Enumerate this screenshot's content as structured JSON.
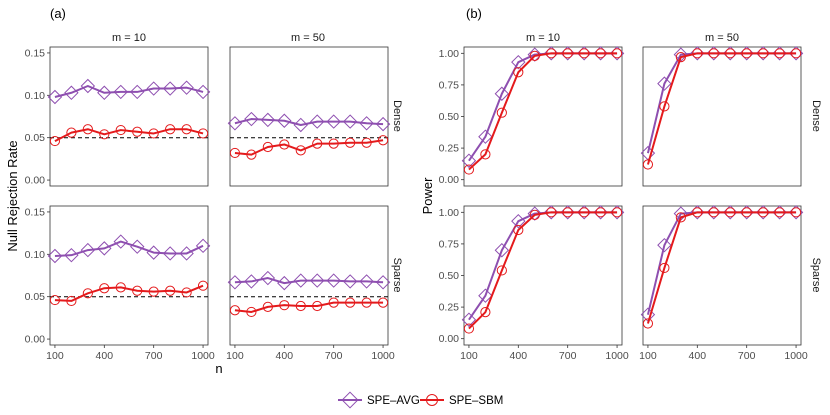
{
  "legend": {
    "avg_label": "SPE–AVG",
    "sbm_label": "SPE–SBM",
    "avg_color": "#8E4FB0",
    "sbm_color": "#E41A1C"
  },
  "chart_data": [
    {
      "type": "line",
      "figure_label": "(a)",
      "ylabel": "Null Rejection Rate",
      "xlabel": "n",
      "ylim": [
        -0.007,
        0.157
      ],
      "yticks": [
        0.0,
        0.05,
        0.1,
        0.15
      ],
      "ytick_labels": [
        "0.00",
        "0.05",
        "0.10",
        "0.15"
      ],
      "xlim": [
        70,
        1030
      ],
      "xticks": [
        100,
        400,
        700,
        1000
      ],
      "xtick_labels": [
        "100",
        "400",
        "700",
        "1000"
      ],
      "col_titles": [
        "m = 10",
        "m = 50"
      ],
      "row_titles": [
        "Dense",
        "Sparse"
      ],
      "reference_line": 0.05,
      "x": [
        100,
        200,
        300,
        400,
        500,
        600,
        700,
        800,
        900,
        1000
      ],
      "panels": [
        {
          "row": 0,
          "col": 0,
          "series": [
            {
              "name": "SPE–AVG",
              "values": [
                0.098,
                0.103,
                0.111,
                0.103,
                0.104,
                0.104,
                0.108,
                0.108,
                0.109,
                0.104
              ]
            },
            {
              "name": "SPE–SBM",
              "values": [
                0.046,
                0.056,
                0.06,
                0.054,
                0.059,
                0.057,
                0.055,
                0.06,
                0.06,
                0.055
              ]
            }
          ]
        },
        {
          "row": 0,
          "col": 1,
          "series": [
            {
              "name": "SPE–AVG",
              "values": [
                0.067,
                0.072,
                0.071,
                0.07,
                0.065,
                0.069,
                0.069,
                0.069,
                0.067,
                0.066
              ]
            },
            {
              "name": "SPE–SBM",
              "values": [
                0.032,
                0.03,
                0.039,
                0.042,
                0.035,
                0.043,
                0.043,
                0.044,
                0.044,
                0.047
              ]
            }
          ]
        },
        {
          "row": 1,
          "col": 0,
          "series": [
            {
              "name": "SPE–AVG",
              "values": [
                0.098,
                0.099,
                0.105,
                0.107,
                0.115,
                0.109,
                0.102,
                0.101,
                0.101,
                0.11
              ]
            },
            {
              "name": "SPE–SBM",
              "values": [
                0.046,
                0.045,
                0.054,
                0.06,
                0.061,
                0.057,
                0.056,
                0.057,
                0.055,
                0.063
              ]
            }
          ]
        },
        {
          "row": 1,
          "col": 1,
          "series": [
            {
              "name": "SPE–AVG",
              "values": [
                0.067,
                0.068,
                0.072,
                0.066,
                0.069,
                0.069,
                0.069,
                0.068,
                0.068,
                0.067
              ]
            },
            {
              "name": "SPE–SBM",
              "values": [
                0.034,
                0.032,
                0.038,
                0.04,
                0.039,
                0.039,
                0.043,
                0.043,
                0.043,
                0.043
              ]
            }
          ]
        }
      ]
    },
    {
      "type": "line",
      "figure_label": "(b)",
      "ylabel": "Power",
      "xlabel": "n",
      "ylim": [
        -0.05,
        1.05
      ],
      "yticks": [
        0.0,
        0.25,
        0.5,
        0.75,
        1.0
      ],
      "ytick_labels": [
        "0.00",
        "0.25",
        "0.50",
        "0.75",
        "1.00"
      ],
      "xlim": [
        70,
        1030
      ],
      "xticks": [
        100,
        400,
        700,
        1000
      ],
      "xtick_labels": [
        "100",
        "400",
        "700",
        "1000"
      ],
      "col_titles": [
        "m = 10",
        "m = 50"
      ],
      "row_titles": [
        "Dense",
        "Sparse"
      ],
      "x": [
        100,
        200,
        300,
        400,
        500,
        600,
        700,
        800,
        900,
        1000
      ],
      "panels": [
        {
          "row": 0,
          "col": 0,
          "series": [
            {
              "name": "SPE–AVG",
              "values": [
                0.15,
                0.34,
                0.68,
                0.93,
                0.99,
                1.0,
                1.0,
                1.0,
                1.0,
                1.0
              ]
            },
            {
              "name": "SPE–SBM",
              "values": [
                0.08,
                0.2,
                0.53,
                0.85,
                0.98,
                1.0,
                1.0,
                1.0,
                1.0,
                1.0
              ]
            }
          ]
        },
        {
          "row": 0,
          "col": 1,
          "series": [
            {
              "name": "SPE–AVG",
              "values": [
                0.21,
                0.76,
                0.99,
                1.0,
                1.0,
                1.0,
                1.0,
                1.0,
                1.0,
                1.0
              ]
            },
            {
              "name": "SPE–SBM",
              "values": [
                0.12,
                0.58,
                0.97,
                1.0,
                1.0,
                1.0,
                1.0,
                1.0,
                1.0,
                1.0
              ]
            }
          ]
        },
        {
          "row": 1,
          "col": 0,
          "series": [
            {
              "name": "SPE–AVG",
              "values": [
                0.15,
                0.34,
                0.7,
                0.93,
                0.99,
                1.0,
                1.0,
                1.0,
                1.0,
                1.0
              ]
            },
            {
              "name": "SPE–SBM",
              "values": [
                0.08,
                0.21,
                0.54,
                0.86,
                0.98,
                1.0,
                1.0,
                1.0,
                1.0,
                1.0
              ]
            }
          ]
        },
        {
          "row": 1,
          "col": 1,
          "series": [
            {
              "name": "SPE–AVG",
              "values": [
                0.19,
                0.74,
                0.99,
                1.0,
                1.0,
                1.0,
                1.0,
                1.0,
                1.0,
                1.0
              ]
            },
            {
              "name": "SPE–SBM",
              "values": [
                0.12,
                0.56,
                0.96,
                1.0,
                1.0,
                1.0,
                1.0,
                1.0,
                1.0,
                1.0
              ]
            }
          ]
        }
      ]
    }
  ]
}
